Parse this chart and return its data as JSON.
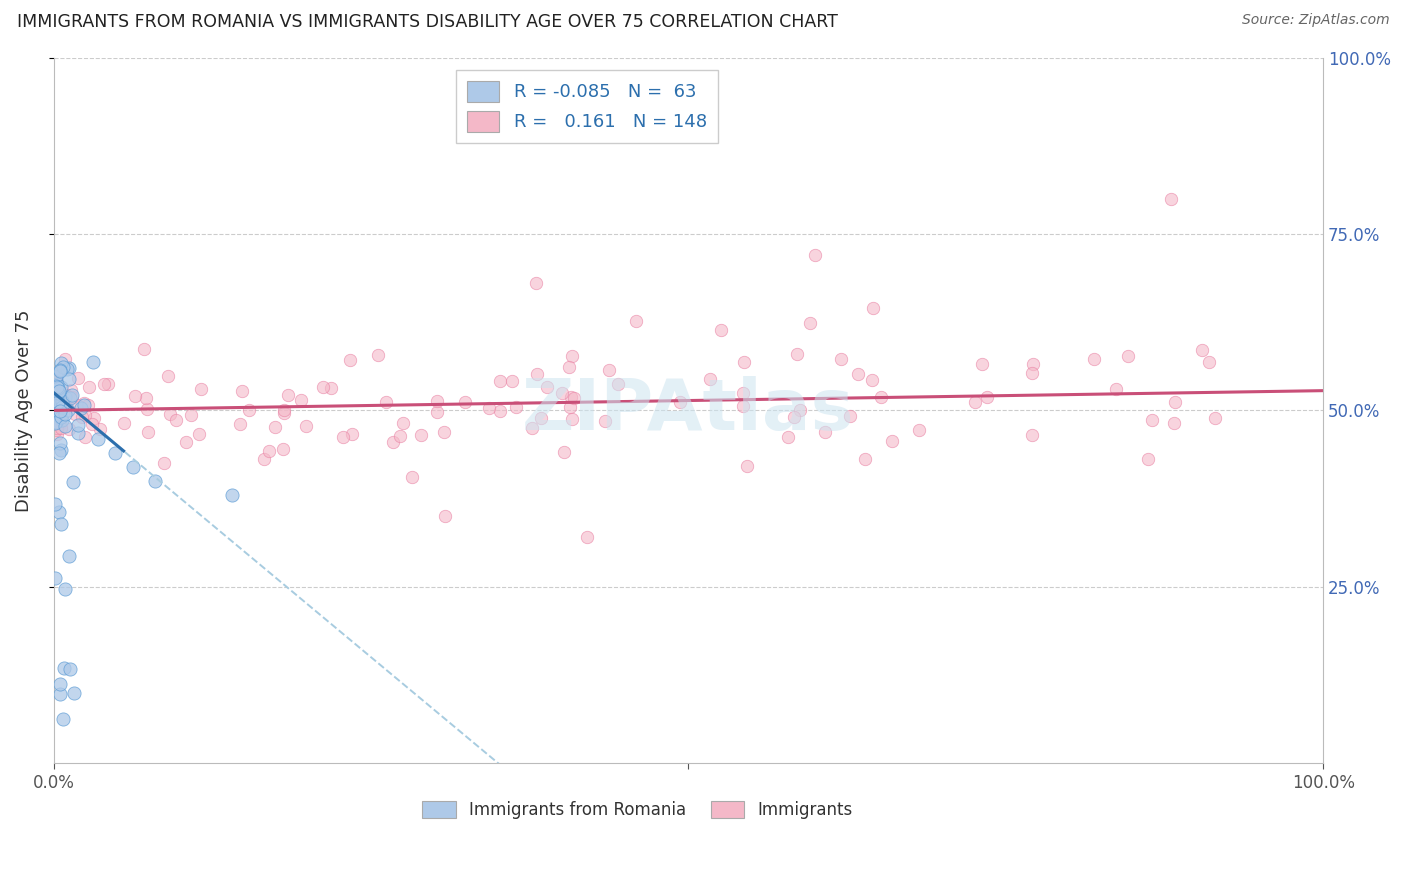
{
  "title": "IMMIGRANTS FROM ROMANIA VS IMMIGRANTS DISABILITY AGE OVER 75 CORRELATION CHART",
  "source": "Source: ZipAtlas.com",
  "ylabel": "Disability Age Over 75",
  "legend_blue_R": "-0.085",
  "legend_blue_N": "63",
  "legend_pink_R": "0.161",
  "legend_pink_N": "148",
  "blue_fill_color": "#aec9e8",
  "blue_edge_color": "#5b9bd5",
  "pink_fill_color": "#f4b8c8",
  "pink_edge_color": "#e87ca0",
  "blue_line_color": "#2c6fad",
  "pink_line_color": "#c94f78",
  "blue_dashed_color": "#a8cce0",
  "watermark_color": "#cce4f0",
  "right_tick_color": "#4169b5",
  "grid_color": "#cccccc",
  "bg_color": "#ffffff"
}
